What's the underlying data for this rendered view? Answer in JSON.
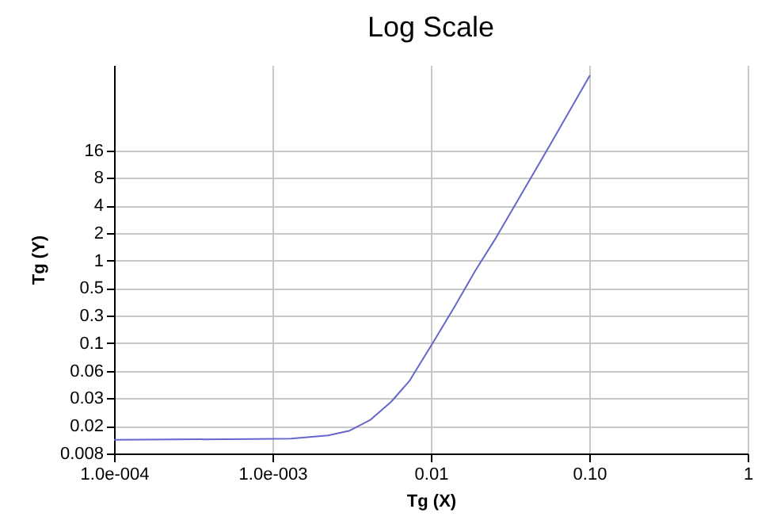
{
  "chart_data": {
    "type": "line",
    "title": "Log Scale",
    "xlabel": "Tg (X)",
    "ylabel": "Tg (Y)",
    "log": "xy",
    "grid": true,
    "marker": "none",
    "line_style": "solid",
    "x": [
      0.0001,
      0.00076,
      0.00131,
      0.00224,
      0.00304,
      0.00413,
      0.00562,
      0.00735,
      0.0102,
      0.0141,
      0.0192,
      0.0257,
      0.0562,
      0.101
    ],
    "series": [
      {
        "color": "#6666cc",
        "values": [
          0.0113,
          0.0115,
          0.0116,
          0.0126,
          0.0141,
          0.0185,
          0.0294,
          0.05,
          0.126,
          0.32,
          0.81,
          1.8,
          18.4,
          108
        ]
      }
    ],
    "xlim": [
      0.0001,
      1
    ],
    "ylim": [
      0.008,
      140
    ],
    "xticks": [
      {
        "value": 0.0001,
        "label": "1.0e-004"
      },
      {
        "value": 0.001,
        "label": "1.0e-003"
      },
      0.01,
      {
        "value": 0.1,
        "label": "0.10"
      },
      1
    ],
    "yticks": [
      0.008,
      {
        "value": 0.016,
        "label": "0.02"
      },
      {
        "value": 0.032,
        "label": "0.03"
      },
      {
        "value": 0.064,
        "label": "0.06"
      },
      {
        "value": 0.128,
        "label": "0.1"
      },
      {
        "value": 0.256,
        "label": "0.3"
      },
      {
        "value": 0.512,
        "label": "0.5"
      },
      {
        "value": 1.024,
        "label": "1"
      },
      {
        "value": 2.048,
        "label": "2"
      },
      {
        "value": 4.096,
        "label": "4"
      },
      {
        "value": 8.192,
        "label": "8"
      },
      {
        "value": 16.384,
        "label": "16"
      }
    ]
  }
}
